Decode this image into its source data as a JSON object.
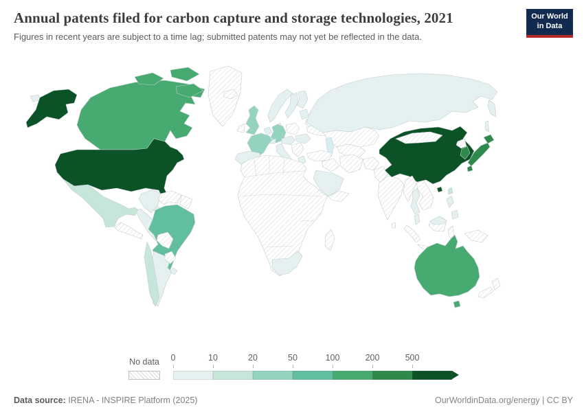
{
  "header": {
    "title": "Annual patents filed for carbon capture and storage technologies, 2021",
    "subtitle": "Figures in recent years are subject to a time lag; submitted patents may not yet be reflected in the data.",
    "logo": {
      "line1": "Our World",
      "line2": "in Data",
      "bg_color": "#122a4e",
      "accent_color": "#b5292b"
    }
  },
  "legend": {
    "no_data_label": "No data",
    "ticks": [
      "0",
      "10",
      "20",
      "50",
      "100",
      "200",
      "500"
    ],
    "order": [
      "b0",
      "b10",
      "b20",
      "b50",
      "b100",
      "b200",
      "b500"
    ],
    "buckets": {
      "b0": {
        "label": "0-10",
        "color": "#e4f1f0"
      },
      "b10": {
        "label": "10-20",
        "color": "#c6e6da"
      },
      "b20": {
        "label": "20-50",
        "color": "#94d3bf"
      },
      "b50": {
        "label": "50-100",
        "color": "#62bf9e"
      },
      "b100": {
        "label": "100-200",
        "color": "#47aa70"
      },
      "b200": {
        "label": "200-500",
        "color": "#2d8a4b"
      },
      "b500": {
        "label": "500+",
        "color": "#0b5226"
      }
    }
  },
  "map": {
    "lake_color": "#d9ecf4",
    "countries": {
      "united-states": "b500",
      "china": "b500",
      "japan": "b200",
      "south-korea": "b200",
      "canada": "b100",
      "australia": "b100",
      "brazil": "b50",
      "united-kingdom": "b20",
      "france": "b20",
      "germany": "b20",
      "mexico": "b10",
      "chile": "b10",
      "taiwan": "b10",
      "russia": "b0",
      "norway": "b0",
      "sweden": "b0",
      "finland": "b0",
      "denmark": "b0",
      "baltics": "b0",
      "benelux": "b0",
      "iberia": "b0",
      "italy": "b0",
      "switzerland": "b0",
      "austria-czech": "b0",
      "hungary-romania": "b0",
      "greece": "b0",
      "saudi-arabia": "b0",
      "south-africa": "b0",
      "colombia": "b0",
      "peru": "b0",
      "argentina": "b0",
      "uruguay": "b0",
      "cuba": "b0",
      "hispaniola": "b0",
      "thailand": "b0",
      "malaysia": "b0",
      "philippines": "b0"
    }
  },
  "footer": {
    "source_label": "Data source:",
    "source_value": "IRENA - INSPIRE Platform (2025)",
    "credit": "OurWorldinData.org/energy | CC BY"
  },
  "chart_data": {
    "type": "choropleth",
    "title": "Annual patents filed for carbon capture and storage technologies",
    "year": "2021",
    "unit": "patents",
    "bins": [
      "0-10",
      "10-20",
      "20-50",
      "50-100",
      "100-200",
      "200-500",
      "500+"
    ],
    "bin_colors": [
      "#e4f1f0",
      "#c6e6da",
      "#94d3bf",
      "#62bf9e",
      "#47aa70",
      "#2d8a4b",
      "#0b5226"
    ],
    "no_data_style": "white with gray diagonal hatching",
    "legend_position": "bottom",
    "countries": {
      "United States": "500+",
      "China": "500+",
      "Japan": "200-500",
      "South Korea": "200-500",
      "Canada": "100-200",
      "Australia": "100-200",
      "Brazil": "50-100",
      "United Kingdom": "20-50",
      "France": "20-50",
      "Germany": "20-50",
      "Mexico": "10-20",
      "Chile": "10-20",
      "Taiwan": "10-20",
      "Russia": "0-10",
      "Norway": "0-10",
      "Sweden": "0-10",
      "Finland": "0-10",
      "Denmark": "0-10",
      "Spain": "0-10",
      "Portugal": "0-10",
      "Italy": "0-10",
      "Netherlands": "0-10",
      "Belgium": "0-10",
      "Switzerland": "0-10",
      "Austria": "0-10",
      "Czechia": "0-10",
      "Hungary": "0-10",
      "Romania": "0-10",
      "Greece": "0-10",
      "Baltic states": "0-10",
      "Saudi Arabia": "0-10",
      "South Africa": "0-10",
      "Colombia": "0-10",
      "Peru": "0-10",
      "Argentina": "0-10",
      "Uruguay": "0-10",
      "Cuba": "0-10",
      "Thailand": "0-10",
      "Malaysia": "0-10",
      "Philippines": "0-10",
      "Greenland": "No data",
      "Iceland": "No data",
      "Ireland": "No data",
      "Ukraine": "No data",
      "Turkey": "No data",
      "Iran": "No data",
      "India": "No data",
      "Mongolia": "No data",
      "Indonesia": "No data",
      "New Zealand": "No data",
      "Most of Africa, Middle East, Eastern Europe and Central Asia": "No data"
    }
  }
}
